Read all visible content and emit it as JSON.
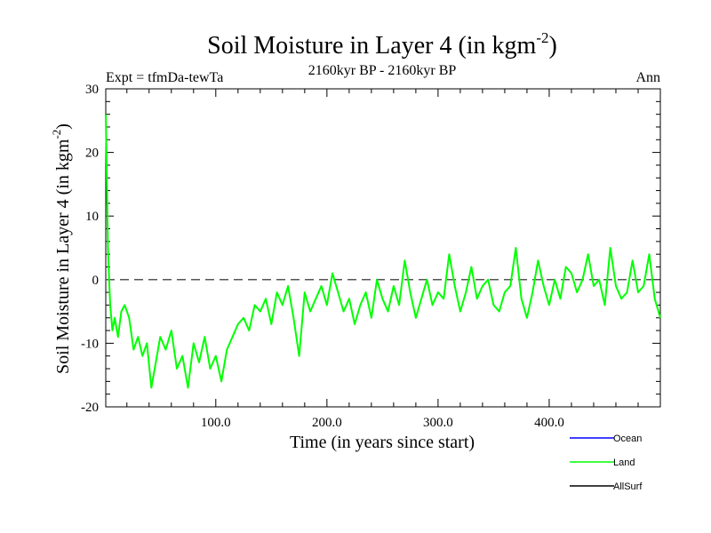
{
  "chart_data": {
    "type": "line",
    "title": "Soil Moisture in Layer 4 (in kgm",
    "title_sup": "-2",
    "title_end": ")",
    "subtitle": "2160kyr BP - 2160kyr BP",
    "expt_label": "Expt = tfmDa-tewTa",
    "period_label": "Ann",
    "xlabel": "Time (in years since start)",
    "ylabel": "Soil Moisture in Layer 4 (in kgm",
    "ylabel_sup": "-2",
    "ylabel_end": ")",
    "xlim": [
      1,
      500
    ],
    "ylim": [
      -20,
      30
    ],
    "x_ticks": [
      100,
      200,
      300,
      400
    ],
    "x_tick_labels": [
      "100.0",
      "200.0",
      "300.0",
      "400.0"
    ],
    "y_ticks": [
      -20,
      -10,
      0,
      10,
      20,
      30
    ],
    "y_tick_labels": [
      "-20",
      "-10",
      "0",
      "10",
      "20",
      "30"
    ],
    "reference_line": 0,
    "legend": [
      {
        "name": "Ocean",
        "color": "#0000ff"
      },
      {
        "name": "Land",
        "color": "#00ff00"
      },
      {
        "name": "AllSurf",
        "color": "#000000"
      }
    ],
    "series": [
      {
        "name": "Land",
        "color": "#00ff00",
        "x": [
          1,
          2,
          3,
          4,
          5,
          7,
          9,
          12,
          15,
          18,
          22,
          26,
          30,
          34,
          38,
          42,
          46,
          50,
          55,
          60,
          65,
          70,
          75,
          80,
          85,
          90,
          95,
          100,
          105,
          110,
          115,
          120,
          125,
          130,
          135,
          140,
          145,
          150,
          155,
          160,
          165,
          170,
          175,
          180,
          185,
          190,
          195,
          200,
          205,
          210,
          215,
          220,
          225,
          230,
          235,
          240,
          245,
          250,
          255,
          260,
          265,
          270,
          275,
          280,
          285,
          290,
          295,
          300,
          305,
          310,
          315,
          320,
          325,
          330,
          335,
          340,
          345,
          350,
          355,
          360,
          365,
          370,
          375,
          380,
          385,
          390,
          395,
          400,
          405,
          410,
          415,
          420,
          425,
          430,
          435,
          440,
          445,
          450,
          455,
          460,
          465,
          470,
          475,
          480,
          485,
          490,
          495,
          500
        ],
        "values": [
          26,
          15,
          5,
          0,
          -4,
          -8,
          -6,
          -9,
          -5,
          -4,
          -6,
          -11,
          -9,
          -12,
          -10,
          -17,
          -13,
          -9,
          -11,
          -8,
          -14,
          -12,
          -17,
          -10,
          -13,
          -9,
          -14,
          -12,
          -16,
          -11,
          -9,
          -7,
          -6,
          -8,
          -4,
          -5,
          -3,
          -7,
          -2,
          -4,
          -1,
          -6,
          -12,
          -2,
          -5,
          -3,
          -1,
          -4,
          1,
          -2,
          -5,
          -3,
          -7,
          -4,
          -2,
          -6,
          0,
          -3,
          -5,
          -1,
          -4,
          3,
          -2,
          -6,
          -3,
          0,
          -4,
          -2,
          -3,
          4,
          -1,
          -5,
          -2,
          2,
          -3,
          -1,
          0,
          -4,
          -5,
          -2,
          -1,
          5,
          -3,
          -6,
          -2,
          3,
          -1,
          -4,
          0,
          -3,
          2,
          1,
          -2,
          0,
          4,
          -1,
          0,
          -4,
          5,
          -1,
          -3,
          -2,
          3,
          -2,
          -1,
          4,
          -3,
          -6
        ]
      }
    ]
  }
}
